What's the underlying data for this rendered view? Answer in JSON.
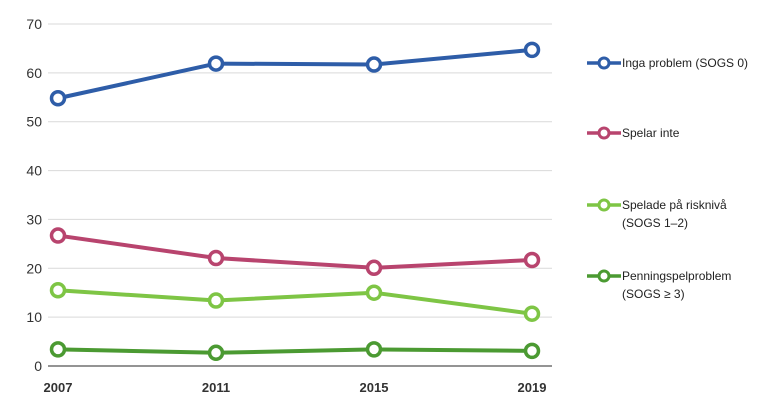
{
  "chart_data": {
    "type": "line",
    "title": "",
    "xlabel": "",
    "ylabel": "",
    "x": [
      "2007",
      "2011",
      "2015",
      "2019"
    ],
    "ylim": [
      0,
      70
    ],
    "yticks": [
      0,
      10,
      20,
      30,
      40,
      50,
      60,
      70
    ],
    "grid": true,
    "legend_position": "right",
    "series": [
      {
        "name": "Inga problem (SOGS 0)",
        "legend_lines": [
          "Inga problem (SOGS 0)"
        ],
        "color": "#2E5DA8",
        "values": [
          54.8,
          61.9,
          61.7,
          64.7
        ]
      },
      {
        "name": "Spelar inte",
        "legend_lines": [
          "Spelar inte"
        ],
        "color": "#B8446E",
        "values": [
          26.7,
          22.1,
          20.1,
          21.7
        ]
      },
      {
        "name": "Spelade på risknivå (SOGS 1–2)",
        "legend_lines": [
          "Spelade på risknivå",
          "(SOGS 1–2)"
        ],
        "color": "#7EC545",
        "values": [
          15.5,
          13.4,
          15.0,
          10.7
        ]
      },
      {
        "name": "Penningspelproblem (SOGS ≥ 3)",
        "legend_lines": [
          "Penningspelproblem",
          "(SOGS ≥ 3)"
        ],
        "color": "#4B9A32",
        "values": [
          3.4,
          2.7,
          3.4,
          3.1
        ]
      }
    ]
  }
}
